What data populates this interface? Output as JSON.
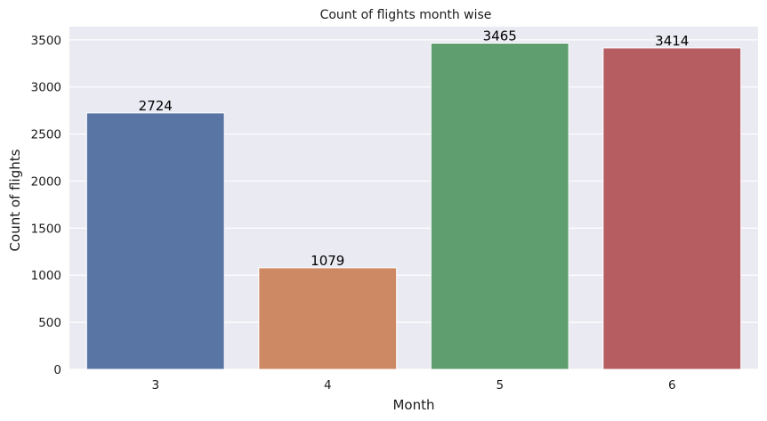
{
  "chart_data": {
    "type": "bar",
    "title": "Count of flights month wise",
    "xlabel": "Month",
    "ylabel": "Count of flights",
    "categories": [
      "3",
      "4",
      "5",
      "6"
    ],
    "values": [
      2724,
      1079,
      3465,
      3414
    ],
    "data_labels": [
      "2724",
      "1079",
      "3465",
      "3414"
    ],
    "colors": [
      "#5975a4",
      "#cc8963",
      "#5f9e6e",
      "#b55d60"
    ],
    "ylim": [
      0,
      3640
    ],
    "yticks": [
      0,
      500,
      1000,
      1500,
      2000,
      2500,
      3000,
      3500
    ],
    "ytick_labels": [
      "0",
      "500",
      "1000",
      "1500",
      "2000",
      "2500",
      "3000",
      "3500"
    ],
    "grid": true,
    "background": "#eaeaf2",
    "grid_color": "#ffffff"
  }
}
